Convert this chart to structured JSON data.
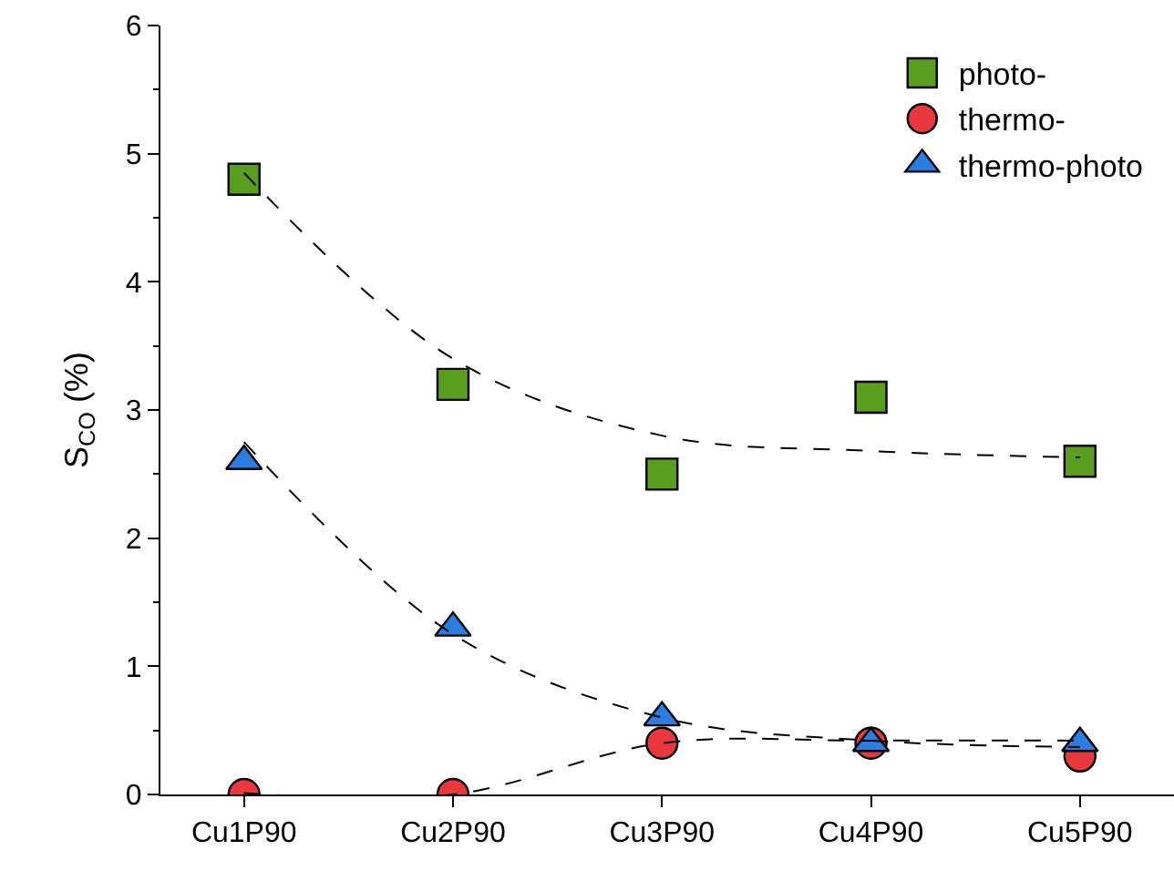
{
  "chart_data": {
    "type": "scatter",
    "ylabel": "S$_{CO}$ (%)",
    "categories": [
      "Cu1P90",
      "Cu2P90",
      "Cu3P90",
      "Cu4P90",
      "Cu5P90"
    ],
    "ylim": [
      0,
      6
    ],
    "yticks": [
      0,
      1,
      2,
      3,
      4,
      5,
      6
    ],
    "legend": "top right",
    "series": [
      {
        "name": "photo-",
        "color": "#5a9e1e",
        "marker": "square",
        "values": [
          4.8,
          3.2,
          2.5,
          3.1,
          2.6
        ]
      },
      {
        "name": "thermo-",
        "color": "#e8383d",
        "marker": "circle",
        "values": [
          0,
          0,
          0.4,
          0.4,
          0.3
        ]
      },
      {
        "name": "thermo-photo",
        "color": "#2a7de1",
        "marker": "triangle",
        "values": [
          2.6,
          1.3,
          0.6,
          0.4,
          0.4
        ]
      },
      {
        "type": "line",
        "color": "#000000",
        "line_style": "dashed",
        "values": [
          4.85,
          3.4,
          2.8,
          2.68,
          2.63
        ]
      },
      {
        "type": "line",
        "color": "#000000",
        "line_style": "dashed",
        "values": [
          2.75,
          1.25,
          0.6,
          0.42,
          0.37
        ]
      },
      {
        "type": "line",
        "color": "#000000",
        "line_style": "dashed",
        "values": [
          0.01,
          0,
          0.4,
          0.42,
          0.42
        ]
      }
    ]
  }
}
